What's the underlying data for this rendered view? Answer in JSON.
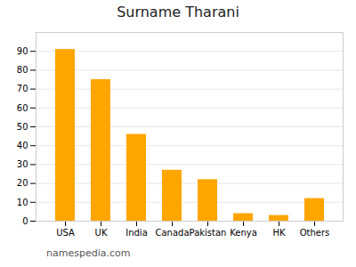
{
  "chart_data": {
    "type": "bar",
    "title": "Surname Tharani",
    "caption": "namespedia.com",
    "categories": [
      "USA",
      "UK",
      "India",
      "Canada",
      "Pakistan",
      "Kenya",
      "HK",
      "Others"
    ],
    "values": [
      91,
      75,
      46,
      27,
      22,
      4,
      3,
      12
    ],
    "color": "#FFA500",
    "ylim": [
      0,
      100
    ],
    "yticks": [
      0,
      10,
      20,
      30,
      40,
      50,
      60,
      70,
      80,
      90
    ],
    "grid": true
  }
}
